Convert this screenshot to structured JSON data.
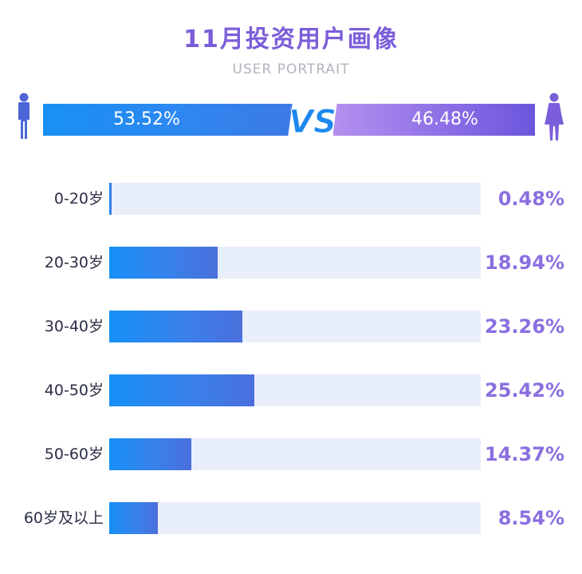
{
  "header": {
    "title": "11月投资用户画像",
    "subtitle": "USER PORTRAIT"
  },
  "gender": {
    "male_label": "53.52%",
    "male_value": 53.52,
    "male_icon": "male-person-icon",
    "vs_text": "VS",
    "female_label": "46.48%",
    "female_value": 46.48,
    "female_icon": "female-person-icon"
  },
  "colors": {
    "title": "#7b5ed9",
    "subtitle": "#b3b3bd",
    "male_bar": "#1e8cf3",
    "female_bar": "#8d6fe6",
    "track": "#e9eefb",
    "age_fill": "#2a88f1",
    "value_text": "#8a6fe0"
  },
  "chart_data": {
    "type": "bar",
    "orientation": "horizontal",
    "categories": [
      "0-20岁",
      "20-30岁",
      "30-40岁",
      "40-50岁",
      "50-60岁",
      "60岁及以上"
    ],
    "values": [
      0.48,
      18.94,
      23.26,
      25.42,
      14.37,
      8.54
    ],
    "value_labels": [
      "0.48%",
      "18.94%",
      "23.26%",
      "25.42%",
      "14.37%",
      "8.54%"
    ],
    "unit": "%",
    "title": "11月投资用户画像",
    "xlabel": "",
    "ylabel": "",
    "grid": false
  }
}
